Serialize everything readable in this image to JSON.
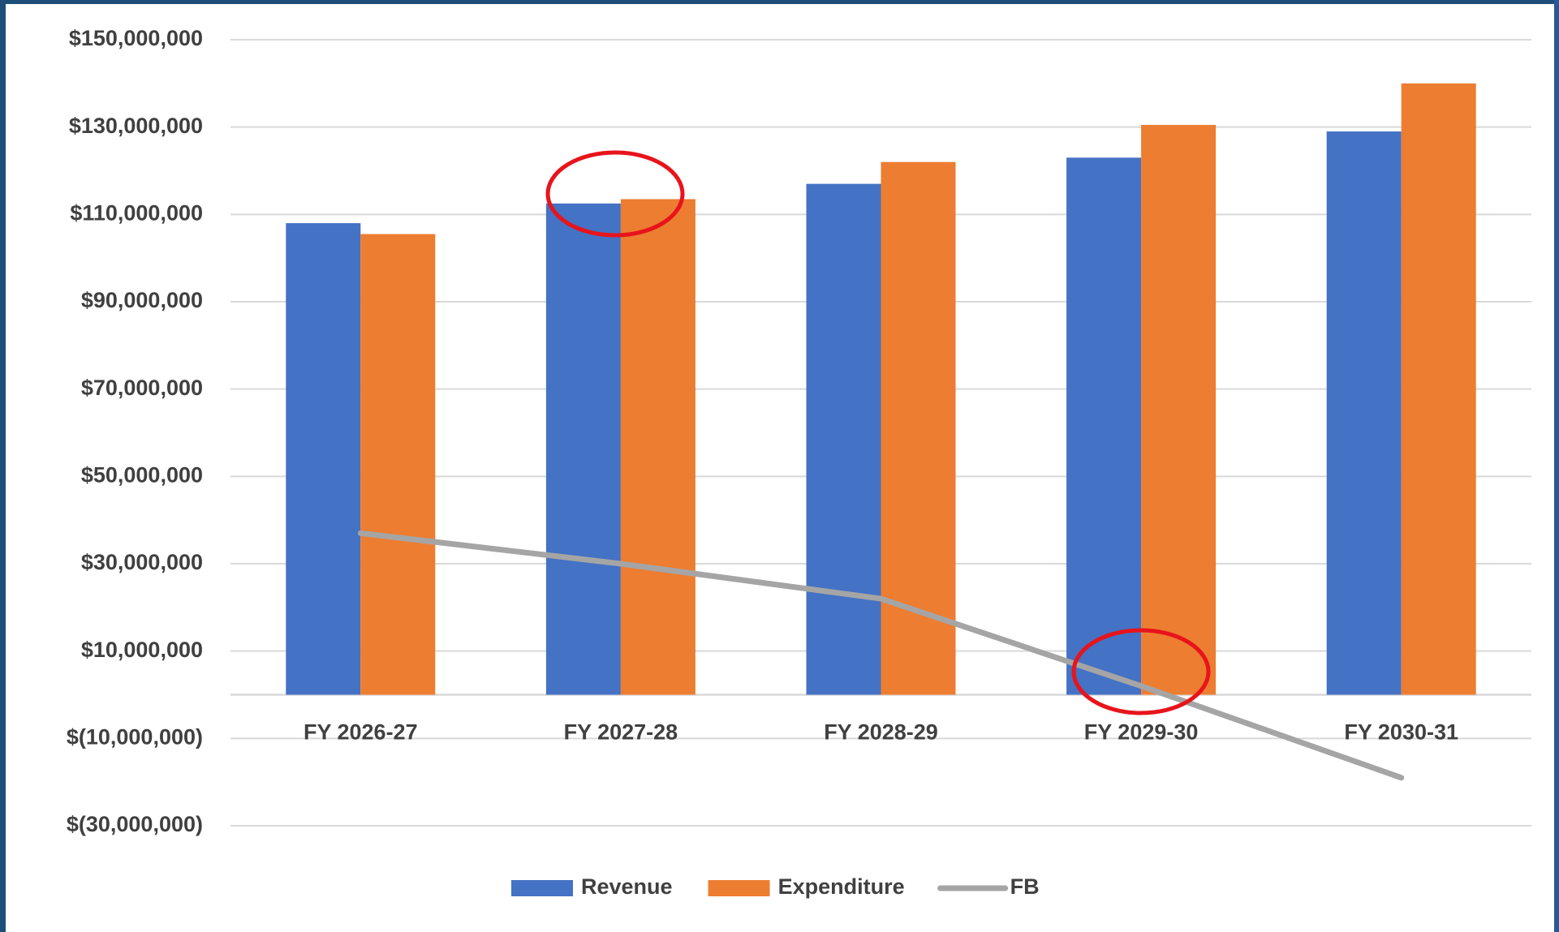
{
  "chart_data": {
    "type": "bar",
    "categories": [
      "FY 2026-27",
      "FY 2027-28",
      "FY 2028-29",
      "FY 2029-30",
      "FY 2030-31"
    ],
    "series": [
      {
        "name": "Revenue",
        "type": "bar",
        "color": "#4472c4",
        "values": [
          108000000,
          112500000,
          117000000,
          123000000,
          129000000
        ]
      },
      {
        "name": "Expenditure",
        "type": "bar",
        "color": "#ed7d31",
        "values": [
          105500000,
          113500000,
          122000000,
          130500000,
          140000000
        ]
      },
      {
        "name": "FB",
        "type": "line",
        "color": "#a5a5a5",
        "values": [
          37000000,
          30000000,
          22000000,
          2000000,
          -19000000
        ]
      }
    ],
    "ylim": [
      -30000000,
      150000000
    ],
    "yticks": [
      {
        "value": -30000000,
        "label": "$(30,000,000)"
      },
      {
        "value": -10000000,
        "label": "$(10,000,000)"
      },
      {
        "value": 10000000,
        "label": "$10,000,000"
      },
      {
        "value": 30000000,
        "label": "$30,000,000"
      },
      {
        "value": 50000000,
        "label": "$50,000,000"
      },
      {
        "value": 70000000,
        "label": "$70,000,000"
      },
      {
        "value": 90000000,
        "label": "$90,000,000"
      },
      {
        "value": 110000000,
        "label": "$110,000,000"
      },
      {
        "value": 130000000,
        "label": "$130,000,000"
      },
      {
        "value": 150000000,
        "label": "$150,000,000"
      }
    ],
    "grid": true,
    "legend": "bottom"
  }
}
